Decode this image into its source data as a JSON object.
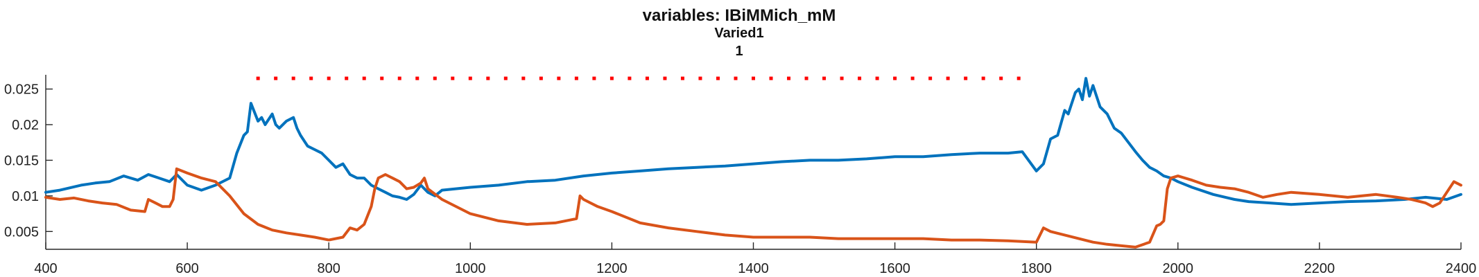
{
  "chart_data": {
    "type": "line",
    "title": "variables: IBiMMich_mM",
    "subtitle": "Varied1",
    "subtitle2": "1",
    "xlim": [
      400,
      2400
    ],
    "ylim": [
      0.0025,
      0.027
    ],
    "x_ticks": [
      400,
      600,
      800,
      1000,
      1200,
      1400,
      1600,
      1800,
      2000,
      2200,
      2400
    ],
    "x_tick_labels": [
      "400",
      "600",
      "800",
      "1000",
      "1200",
      "1400",
      "1600",
      "1800",
      "2000",
      "2200",
      "2400"
    ],
    "y_ticks": [
      0.005,
      0.01,
      0.015,
      0.02,
      0.025
    ],
    "y_tick_labels": [
      "0.005",
      "0.01",
      "0.015",
      "0.02",
      "0.025"
    ],
    "grid": false,
    "colors": {
      "blue": "#0072BD",
      "orange": "#D95319",
      "marker": "#FF0000",
      "axis": "#262626"
    },
    "series": [
      {
        "color": "#0072BD",
        "x": [
          400,
          420,
          450,
          470,
          490,
          510,
          530,
          545,
          560,
          575,
          585,
          600,
          620,
          640,
          660,
          670,
          680,
          685,
          690,
          700,
          705,
          710,
          720,
          725,
          730,
          740,
          750,
          755,
          760,
          770,
          780,
          790,
          800,
          810,
          820,
          830,
          840,
          850,
          860,
          870,
          880,
          890,
          900,
          910,
          920,
          930,
          940,
          950,
          960,
          1000,
          1040,
          1080,
          1120,
          1160,
          1200,
          1240,
          1280,
          1320,
          1360,
          1400,
          1440,
          1480,
          1520,
          1560,
          1600,
          1640,
          1680,
          1720,
          1760,
          1780,
          1800,
          1810,
          1820,
          1830,
          1840,
          1845,
          1850,
          1855,
          1860,
          1865,
          1870,
          1875,
          1880,
          1890,
          1900,
          1910,
          1920,
          1930,
          1940,
          1950,
          1960,
          1970,
          1980,
          1990,
          2000,
          2020,
          2050,
          2080,
          2100,
          2130,
          2160,
          2200,
          2240,
          2280,
          2320,
          2350,
          2380,
          2400
        ],
        "y": [
          0.0105,
          0.0108,
          0.0115,
          0.0118,
          0.012,
          0.0128,
          0.0122,
          0.013,
          0.0125,
          0.012,
          0.013,
          0.0115,
          0.0108,
          0.0115,
          0.0125,
          0.016,
          0.0185,
          0.019,
          0.023,
          0.0205,
          0.021,
          0.02,
          0.0215,
          0.02,
          0.0195,
          0.0205,
          0.021,
          0.0195,
          0.0185,
          0.017,
          0.0165,
          0.016,
          0.015,
          0.014,
          0.0145,
          0.013,
          0.0125,
          0.0125,
          0.0115,
          0.011,
          0.0105,
          0.01,
          0.0098,
          0.0095,
          0.0102,
          0.0115,
          0.0105,
          0.01,
          0.0108,
          0.0112,
          0.0115,
          0.012,
          0.0122,
          0.0128,
          0.0132,
          0.0135,
          0.0138,
          0.014,
          0.0142,
          0.0145,
          0.0148,
          0.015,
          0.015,
          0.0152,
          0.0155,
          0.0155,
          0.0158,
          0.016,
          0.016,
          0.0162,
          0.0135,
          0.0145,
          0.018,
          0.0185,
          0.022,
          0.0215,
          0.023,
          0.0245,
          0.025,
          0.0235,
          0.0265,
          0.024,
          0.0255,
          0.0225,
          0.0215,
          0.0195,
          0.0188,
          0.0175,
          0.0162,
          0.015,
          0.014,
          0.0135,
          0.0128,
          0.0125,
          0.012,
          0.0112,
          0.0102,
          0.0095,
          0.0092,
          0.009,
          0.0088,
          0.009,
          0.0092,
          0.0093,
          0.0095,
          0.0098,
          0.0095,
          0.0102
        ]
      },
      {
        "color": "#D95319",
        "x": [
          400,
          420,
          440,
          460,
          480,
          500,
          520,
          540,
          545,
          555,
          565,
          575,
          580,
          585,
          600,
          620,
          640,
          660,
          680,
          700,
          720,
          740,
          760,
          780,
          800,
          820,
          830,
          840,
          850,
          860,
          865,
          870,
          880,
          890,
          900,
          910,
          920,
          930,
          935,
          940,
          960,
          1000,
          1040,
          1080,
          1120,
          1150,
          1155,
          1160,
          1180,
          1200,
          1240,
          1280,
          1320,
          1360,
          1400,
          1440,
          1480,
          1520,
          1560,
          1600,
          1640,
          1680,
          1720,
          1760,
          1800,
          1810,
          1820,
          1840,
          1860,
          1880,
          1900,
          1920,
          1940,
          1960,
          1970,
          1975,
          1980,
          1985,
          1990,
          2000,
          2020,
          2040,
          2060,
          2080,
          2100,
          2120,
          2140,
          2160,
          2200,
          2240,
          2280,
          2310,
          2330,
          2350,
          2360,
          2370,
          2380,
          2390,
          2400
        ],
        "y": [
          0.0098,
          0.0095,
          0.0097,
          0.0093,
          0.009,
          0.0088,
          0.008,
          0.0078,
          0.0095,
          0.009,
          0.0085,
          0.0085,
          0.0095,
          0.0138,
          0.0132,
          0.0125,
          0.012,
          0.01,
          0.0075,
          0.006,
          0.0052,
          0.0048,
          0.0045,
          0.0042,
          0.0038,
          0.0042,
          0.0055,
          0.0052,
          0.006,
          0.0085,
          0.011,
          0.0125,
          0.013,
          0.0125,
          0.012,
          0.011,
          0.0112,
          0.0118,
          0.0125,
          0.011,
          0.0095,
          0.0075,
          0.0065,
          0.006,
          0.0062,
          0.0068,
          0.01,
          0.0095,
          0.0085,
          0.0078,
          0.0062,
          0.0055,
          0.005,
          0.0045,
          0.0042,
          0.0042,
          0.0042,
          0.004,
          0.004,
          0.004,
          0.004,
          0.0038,
          0.0038,
          0.0037,
          0.0035,
          0.0055,
          0.005,
          0.0045,
          0.004,
          0.0035,
          0.0032,
          0.003,
          0.0028,
          0.0035,
          0.0058,
          0.006,
          0.0065,
          0.011,
          0.0125,
          0.0128,
          0.0122,
          0.0115,
          0.0112,
          0.011,
          0.0105,
          0.0098,
          0.0102,
          0.0105,
          0.0102,
          0.0098,
          0.0102,
          0.0098,
          0.0095,
          0.009,
          0.0085,
          0.009,
          0.0105,
          0.012,
          0.0115
        ]
      }
    ],
    "markers": {
      "color": "#FF0000",
      "y": 0.0265,
      "x": [
        700,
        725,
        750,
        775,
        800,
        825,
        850,
        875,
        900,
        925,
        950,
        975,
        1000,
        1025,
        1050,
        1075,
        1100,
        1125,
        1150,
        1175,
        1200,
        1225,
        1250,
        1275,
        1300,
        1325,
        1350,
        1375,
        1400,
        1425,
        1450,
        1475,
        1500,
        1525,
        1550,
        1575,
        1600,
        1625,
        1650,
        1675,
        1700,
        1725,
        1750,
        1775
      ]
    }
  }
}
